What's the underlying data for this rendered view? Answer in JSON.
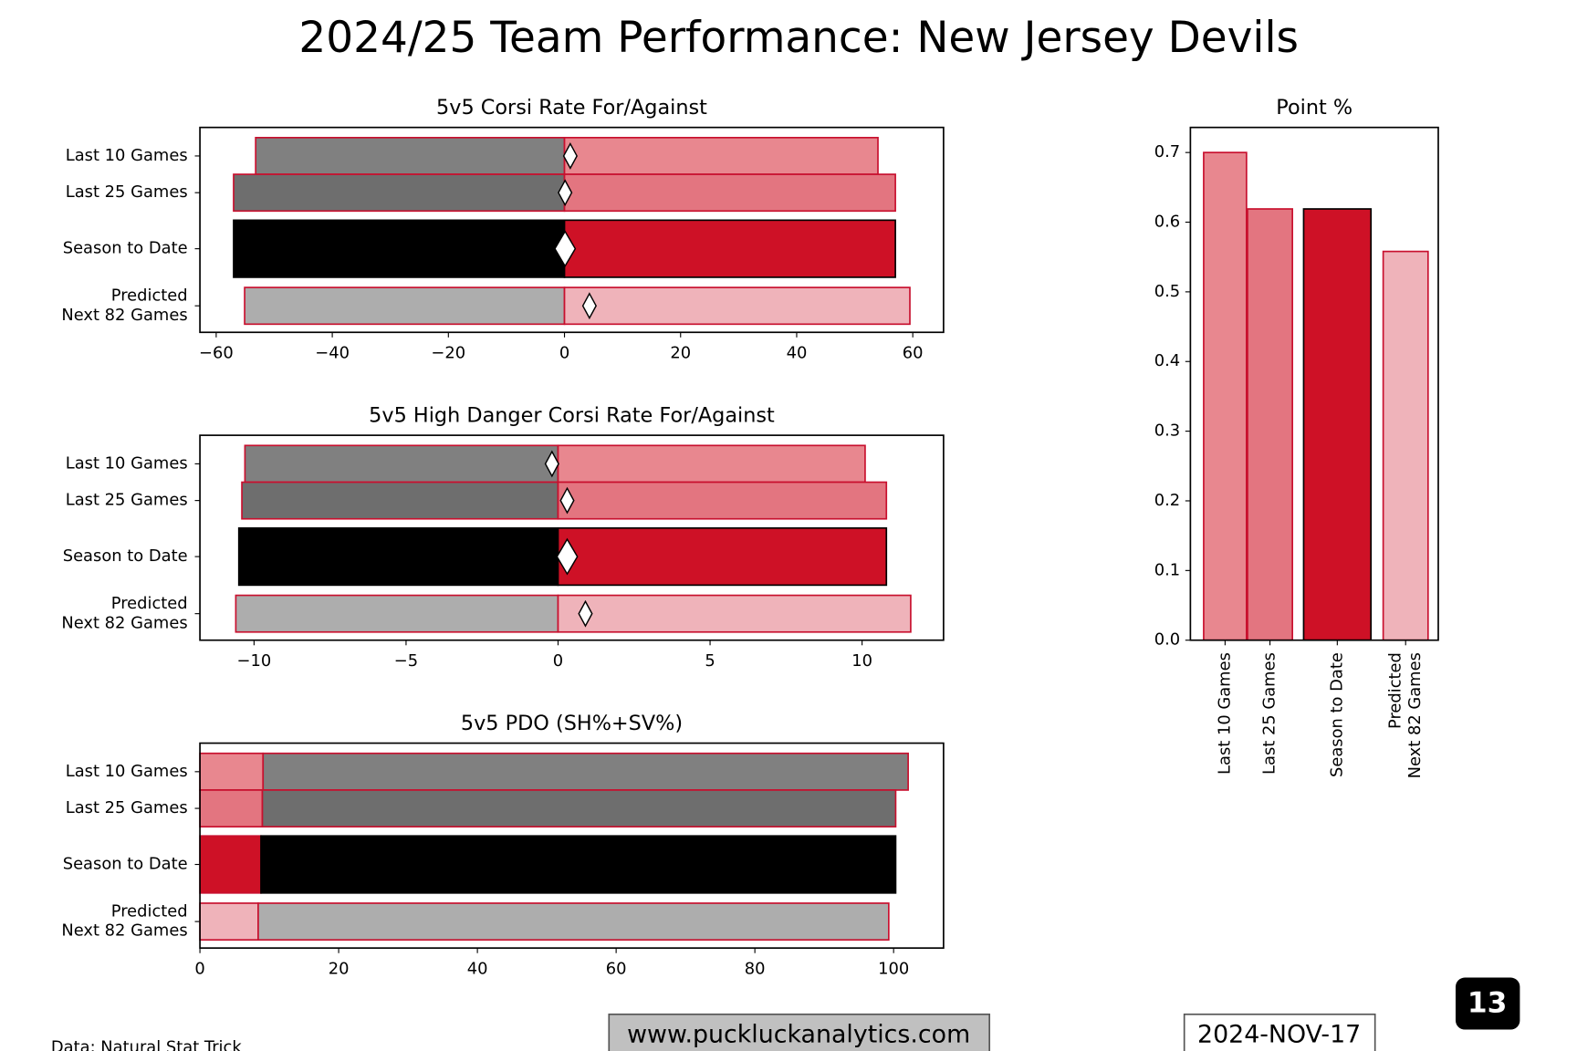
{
  "title": "2024/25 Team Performance: New Jersey Devils",
  "footer": {
    "source": "Data: Natural Stat Trick",
    "website": "www.puckluckanalytics.com",
    "date": "2024-NOV-17",
    "page": "13"
  },
  "chart_data": [
    {
      "type": "diverging_bar",
      "title": "5v5 Corsi Rate For/Against",
      "categories": [
        "Last 10 Games",
        "Last 25 Games",
        "Season to Date",
        "Predicted\nNext 82 Games"
      ],
      "series": [
        {
          "values": [
            -53.2,
            -57.0,
            -57.0,
            -55.1
          ],
          "colors": [
            "#808080",
            "#6e6e6e",
            "#000000",
            "#adadad"
          ],
          "edgecolors": [
            "#c8102e",
            "#c8102e",
            "#000000",
            "#c8102e"
          ]
        },
        {
          "values": [
            54.0,
            57.0,
            57.0,
            59.5
          ],
          "colors": [
            "#e8878f",
            "#e37580",
            "#ce1126",
            "#efb3ba"
          ],
          "edgecolors": [
            "#c8102e",
            "#c8102e",
            "#000000",
            "#c8102e"
          ]
        },
        {
          "values": [
            1.0,
            0.1,
            0.1,
            4.3
          ],
          "color": "#ffffff",
          "marker": "diamond"
        }
      ],
      "xlim": [
        -62.8,
        65.3
      ],
      "xticks": [
        {
          "value": -60,
          "label": "−60"
        },
        {
          "value": -40,
          "label": "−40"
        },
        {
          "value": -20,
          "label": "−20"
        },
        0,
        20,
        40,
        60
      ]
    },
    {
      "type": "diverging_bar",
      "title": "5v5 High Danger Corsi Rate For/Against",
      "categories": [
        "Last 10 Games",
        "Last 25 Games",
        "Season to Date",
        "Predicted\nNext 82 Games"
      ],
      "series": [
        {
          "values": [
            -10.3,
            -10.4,
            -10.5,
            -10.6
          ],
          "colors": [
            "#808080",
            "#6e6e6e",
            "#000000",
            "#adadad"
          ],
          "edgecolors": [
            "#c8102e",
            "#c8102e",
            "#000000",
            "#c8102e"
          ]
        },
        {
          "values": [
            10.1,
            10.8,
            10.8,
            11.6
          ],
          "colors": [
            "#e8878f",
            "#e37580",
            "#ce1126",
            "#efb3ba"
          ],
          "edgecolors": [
            "#c8102e",
            "#c8102e",
            "#000000",
            "#c8102e"
          ]
        },
        {
          "values": [
            -0.2,
            0.3,
            0.3,
            0.9
          ],
          "color": "#ffffff",
          "marker": "diamond"
        }
      ],
      "xlim": [
        -11.78,
        12.68
      ],
      "xticks": [
        {
          "value": -10,
          "label": "−10"
        },
        {
          "value": -5,
          "label": "−5"
        },
        0,
        5,
        10
      ]
    },
    {
      "type": "stacked_bar",
      "title": "5v5 PDO (SH%+SV%)",
      "categories": [
        "Last 10 Games",
        "Last 25 Games",
        "Season to Date",
        "Predicted\nNext 82 Games"
      ],
      "series": [
        {
          "values": [
            9.1,
            9.0,
            8.8,
            8.4
          ],
          "colors": [
            "#e8878f",
            "#e37580",
            "#ce1126",
            "#efb3ba"
          ],
          "edgecolors": [
            "#c8102e",
            "#c8102e",
            "#c8102e",
            "#c8102e"
          ]
        },
        {
          "values": [
            93.0,
            91.3,
            91.5,
            90.9
          ],
          "colors": [
            "#808080",
            "#6e6e6e",
            "#000000",
            "#adadad"
          ],
          "edgecolors": [
            "#c8102e",
            "#c8102e",
            "#000000",
            "#c8102e"
          ]
        }
      ],
      "xlim": [
        0,
        107.2
      ],
      "xticks": [
        0,
        20,
        40,
        60,
        80,
        100
      ]
    },
    {
      "type": "bar",
      "title": "Point %",
      "categories": [
        "Last 10 Games",
        "Last 25 Games",
        "Season to Date",
        "Predicted\nNext 82 Games"
      ],
      "values": [
        0.7,
        0.619,
        0.619,
        0.558
      ],
      "colors": [
        "#e8878f",
        "#e37580",
        "#ce1126",
        "#efb3ba"
      ],
      "edgecolors": [
        "#c8102e",
        "#c8102e",
        "#000000",
        "#c8102e"
      ],
      "ylim": [
        0,
        0.736
      ],
      "yticks": [
        {
          "value": 0,
          "label": "0.0"
        },
        0.1,
        0.2,
        0.3,
        0.4,
        0.5,
        0.6,
        0.7
      ]
    }
  ]
}
